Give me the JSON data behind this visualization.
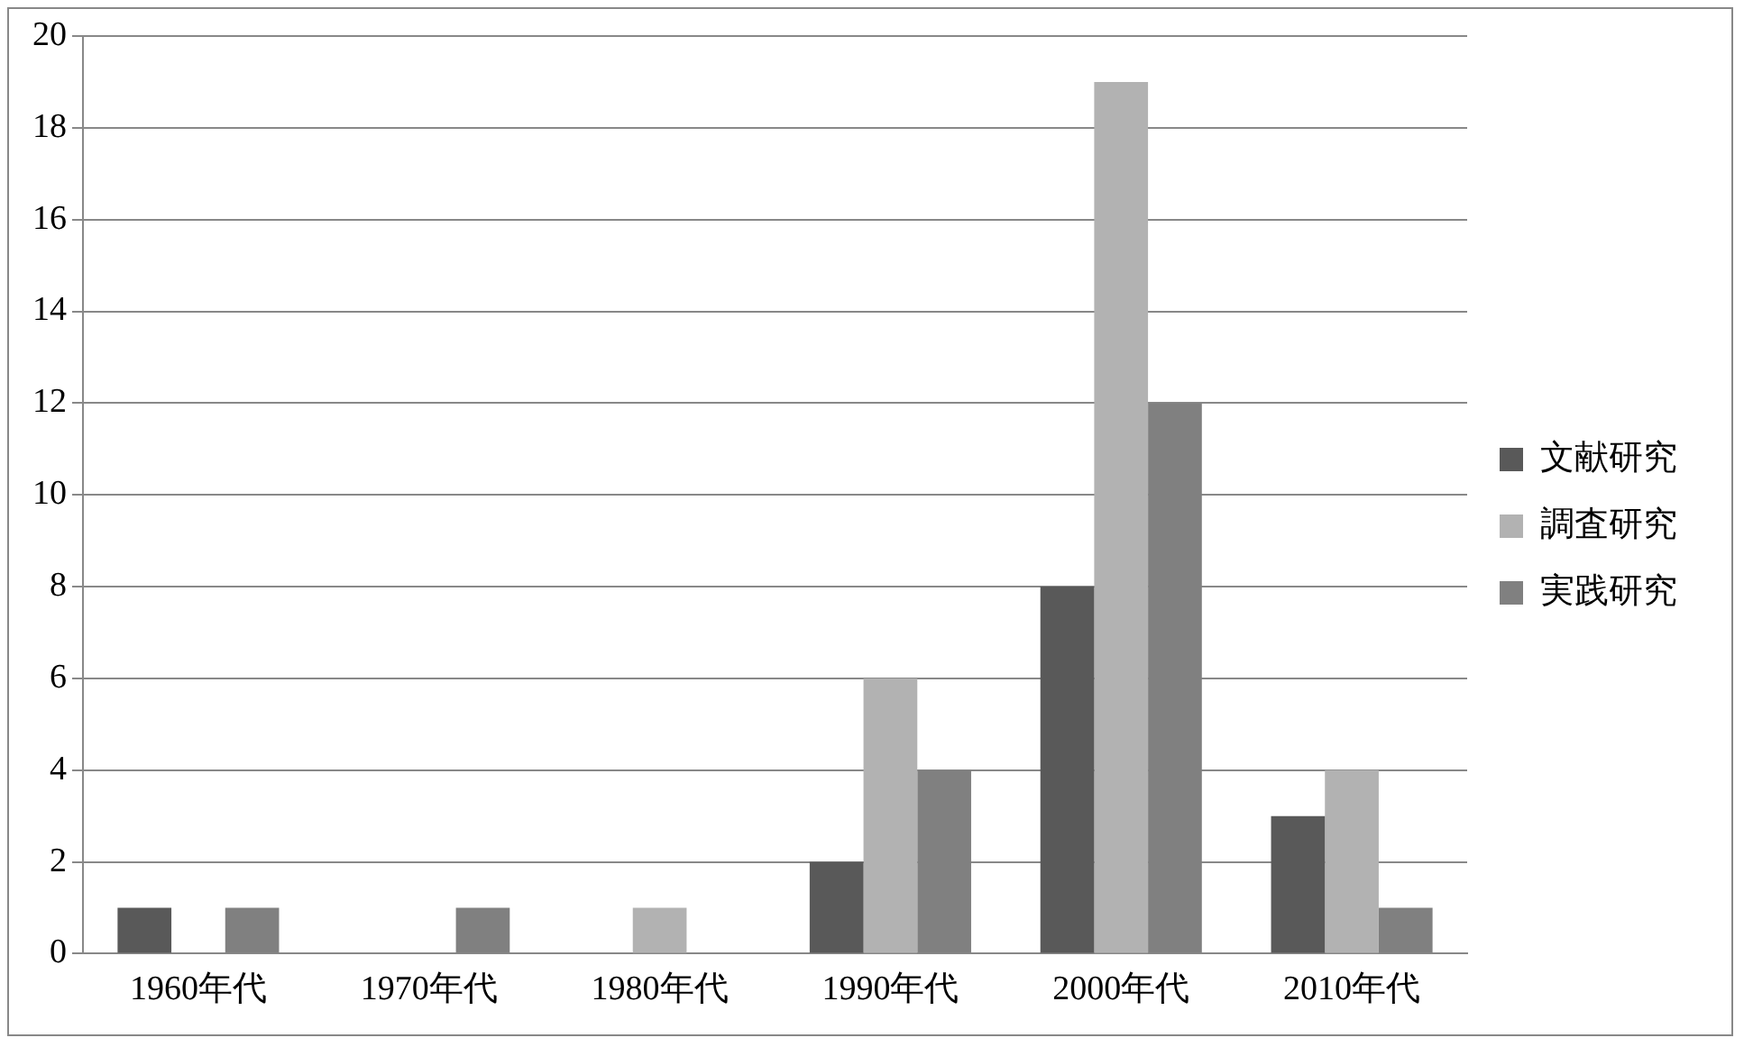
{
  "chart_data": {
    "type": "bar",
    "categories": [
      "1960年代",
      "1970年代",
      "1980年代",
      "1990年代",
      "2000年代",
      "2010年代"
    ],
    "series": [
      {
        "name": "文献研究",
        "color": "#595959",
        "values": [
          1,
          0,
          0,
          2,
          8,
          3
        ]
      },
      {
        "name": "調査研究",
        "color": "#b2b2b2",
        "values": [
          0,
          0,
          1,
          6,
          19,
          4
        ]
      },
      {
        "name": "実践研究",
        "color": "#808080",
        "values": [
          1,
          1,
          0,
          4,
          12,
          1
        ]
      }
    ],
    "ylim": [
      0,
      20
    ],
    "yticks": [
      0,
      2,
      4,
      6,
      8,
      10,
      12,
      14,
      16,
      18,
      20
    ],
    "grid": "y",
    "legend": "right"
  }
}
